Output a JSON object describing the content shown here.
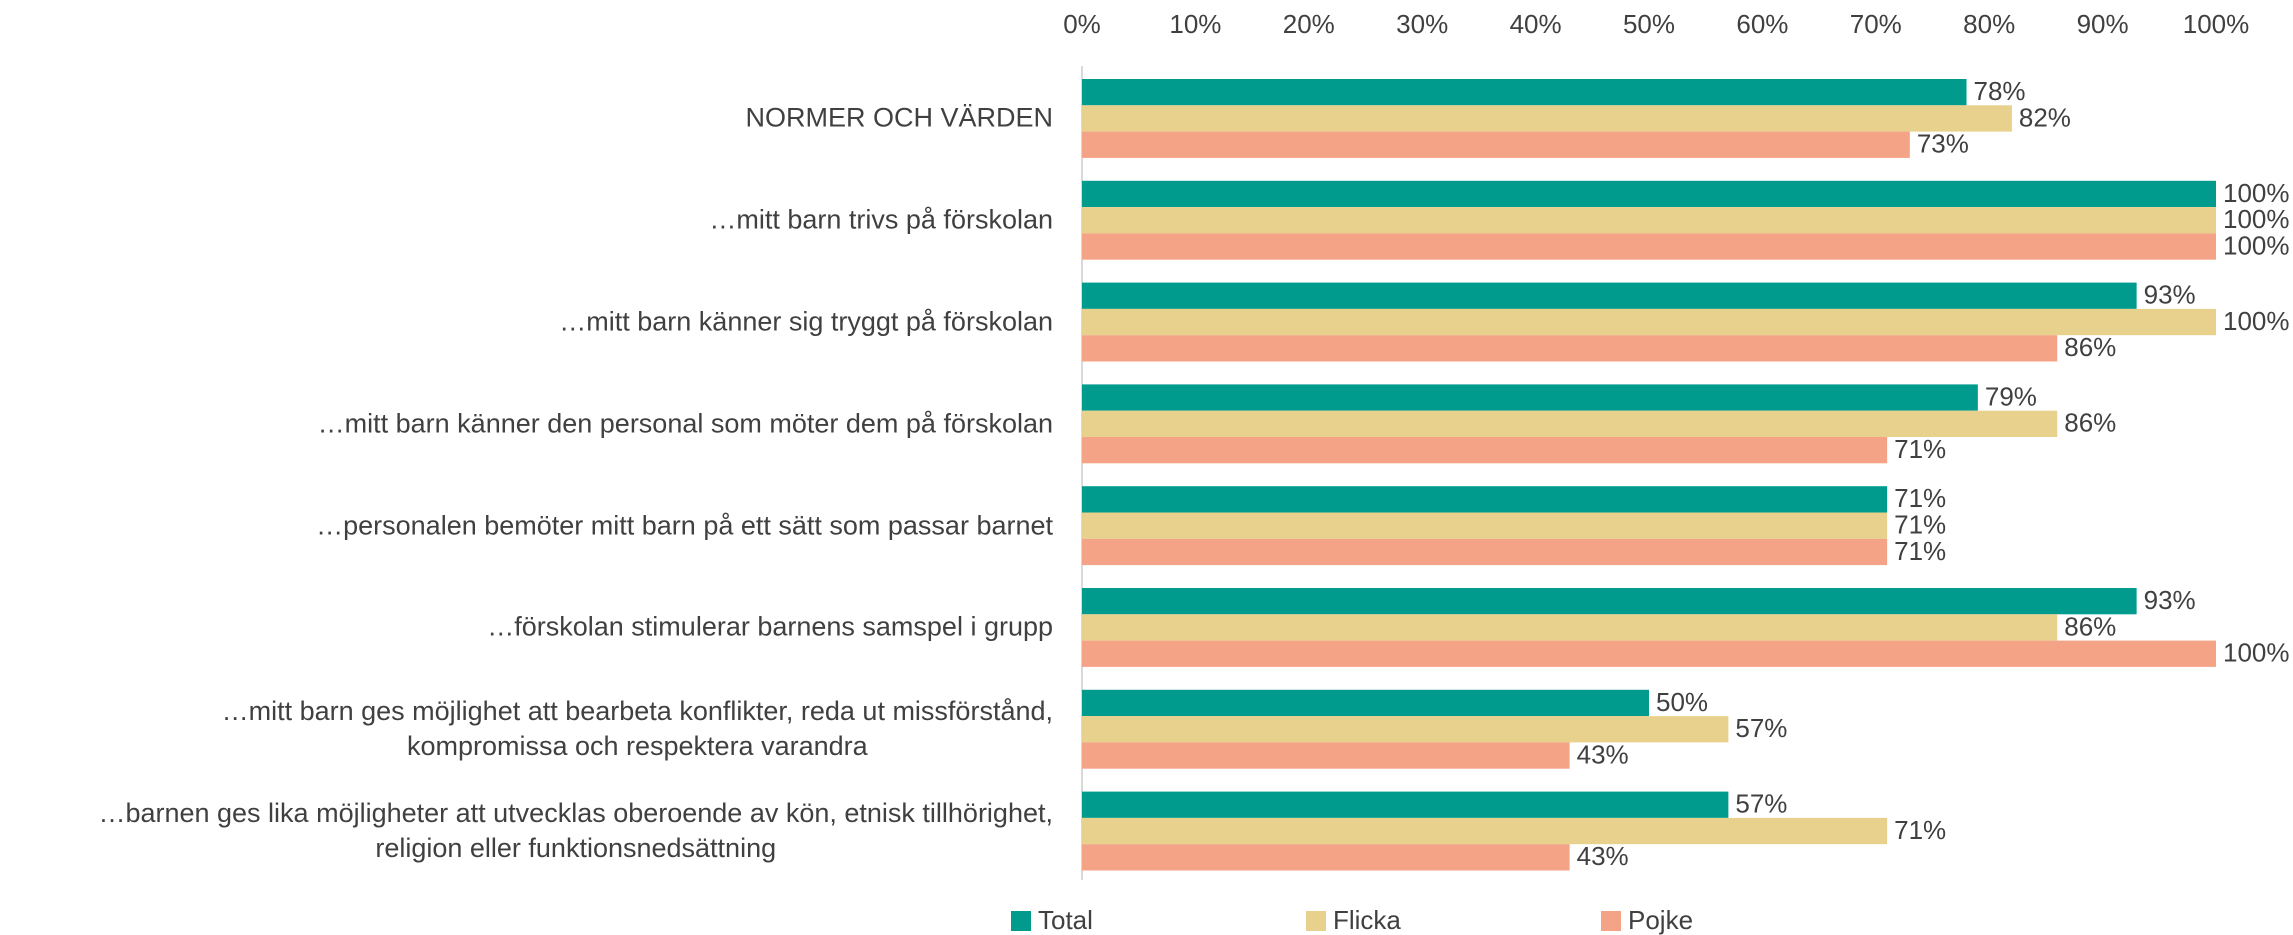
{
  "chart_data": {
    "type": "bar",
    "orientation": "horizontal",
    "categories": [
      "NORMER OCH VÄRDEN",
      "…mitt barn trivs på förskolan",
      "…mitt barn känner sig tryggt på förskolan",
      "…mitt barn känner den personal som möter dem på förskolan",
      "…personalen bemöter mitt barn på ett sätt som passar barnet",
      "…förskolan stimulerar barnens samspel i grupp",
      "…mitt barn ges möjlighet att bearbeta konflikter, reda ut missförstånd,\nkompromissa och respektera varandra",
      "…barnen ges lika möjligheter att utvecklas oberoende av kön, etnisk tillhörighet,\nreligion eller funktionsnedsättning"
    ],
    "series": [
      {
        "name": "Total",
        "color": "#009b8d",
        "values": [
          78,
          100,
          93,
          79,
          71,
          93,
          50,
          57
        ],
        "value_labels": [
          "78%",
          "100%",
          "93%",
          "79%",
          "71%",
          "93%",
          "50%",
          "57%"
        ]
      },
      {
        "name": "Flicka",
        "color": "#e8d18c",
        "values": [
          82,
          100,
          100,
          86,
          71,
          86,
          57,
          71
        ],
        "value_labels": [
          "82%",
          "100%",
          "100%",
          "86%",
          "71%",
          "86%",
          "57%",
          "71%"
        ]
      },
      {
        "name": "Pojke",
        "color": "#f4a386",
        "values": [
          73,
          100,
          86,
          71,
          71,
          100,
          43,
          43
        ],
        "value_labels": [
          "73%",
          "100%",
          "86%",
          "71%",
          "71%",
          "100%",
          "43%",
          "43%"
        ]
      }
    ],
    "xlim": [
      0,
      100
    ],
    "xticks": [
      {
        "value": 0,
        "label": "0%"
      },
      {
        "value": 10,
        "label": "10%"
      },
      {
        "value": 20,
        "label": "20%"
      },
      {
        "value": 30,
        "label": "30%"
      },
      {
        "value": 40,
        "label": "40%"
      },
      {
        "value": 50,
        "label": "50%"
      },
      {
        "value": 60,
        "label": "60%"
      },
      {
        "value": 70,
        "label": "70%"
      },
      {
        "value": 80,
        "label": "80%"
      },
      {
        "value": 90,
        "label": "90%"
      },
      {
        "value": 100,
        "label": "100%"
      }
    ],
    "legend": "bottom"
  }
}
